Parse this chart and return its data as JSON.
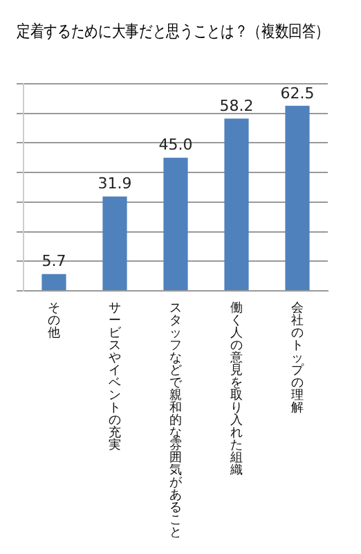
{
  "chart_data": {
    "type": "bar",
    "title": "定着するために大事だと思うことは？（複数回答）",
    "categories": [
      "その他",
      "サービスやイベントの充実",
      "スタッフなどで親和的な雰囲気があること",
      "働く人の意見を取り入れた組織",
      "会社のトップの理解"
    ],
    "values": [
      5.7,
      31.9,
      45.0,
      58.2,
      62.5
    ],
    "value_labels": [
      "5.7",
      "31.9",
      "45.0",
      "58.2",
      "62.5"
    ],
    "color": "#4f81bd",
    "ylim": [
      0,
      70
    ],
    "yticks": [
      {
        "value": 0,
        "label": null
      },
      {
        "value": 10,
        "label": null
      },
      {
        "value": 20,
        "label": null
      },
      {
        "value": 30,
        "label": null
      },
      {
        "value": 40,
        "label": null
      },
      {
        "value": 50,
        "label": null
      },
      {
        "value": 60,
        "label": null
      },
      {
        "value": 70,
        "label": null
      }
    ],
    "grid": "y",
    "tick_labels": "x"
  }
}
